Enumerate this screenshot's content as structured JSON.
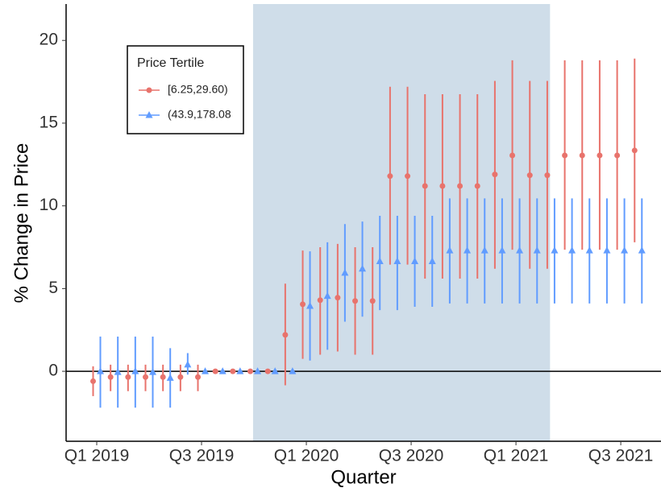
{
  "chart_data": {
    "type": "errorbar",
    "x_label": "Quarter",
    "y_label": "% Change in Price",
    "categories": [
      "Q1 2019",
      null,
      null,
      null,
      null,
      null,
      "Q3 2019",
      null,
      null,
      null,
      null,
      null,
      "Q1 2020",
      null,
      null,
      null,
      null,
      null,
      "Q3 2020",
      null,
      null,
      null,
      null,
      null,
      "Q1 2021",
      null,
      null,
      null,
      null,
      null,
      "Q3 2021",
      null
    ],
    "ylim": [
      -4.23,
      22.2
    ],
    "yticks": [
      0,
      5,
      10,
      15,
      20
    ],
    "grid": false,
    "zero_line": true,
    "shade": {
      "from": 8.95,
      "to": 25.95,
      "color": "#cfdde9"
    },
    "legend": {
      "title": "Price Tertile",
      "position": "top-left"
    },
    "series": [
      {
        "name": "[6.25,29.60)",
        "color": "#e8736c",
        "marker": "circle",
        "values": [
          -0.6,
          -0.35,
          -0.35,
          -0.35,
          -0.35,
          -0.35,
          -0.35,
          0,
          0,
          0,
          0,
          2.2,
          4.05,
          4.3,
          4.45,
          4.25,
          4.25,
          11.8,
          11.8,
          11.2,
          11.2,
          11.2,
          11.2,
          11.9,
          13.05,
          11.85,
          11.85,
          13.05,
          13.05,
          13.05,
          13.05,
          13.35
        ],
        "lower": [
          -1.5,
          -1.2,
          -1.2,
          -1.2,
          -1.2,
          -1.2,
          -1.2,
          0,
          0,
          0,
          0,
          -0.85,
          0.75,
          1.0,
          1.2,
          1.0,
          1.0,
          6.45,
          6.45,
          5.6,
          5.6,
          5.6,
          5.6,
          6.2,
          7.35,
          6.2,
          6.2,
          7.35,
          7.35,
          7.35,
          7.35,
          7.8
        ],
        "upper": [
          0.3,
          0.4,
          0.4,
          0.4,
          0.4,
          0.4,
          0.4,
          0,
          0,
          0,
          0,
          5.3,
          7.3,
          7.5,
          7.7,
          7.5,
          7.5,
          17.2,
          17.2,
          16.75,
          16.75,
          16.75,
          16.75,
          17.55,
          18.8,
          17.55,
          17.55,
          18.8,
          18.8,
          18.8,
          18.8,
          18.9
        ]
      },
      {
        "name": "(43.9,178.08",
        "color": "#619cff",
        "marker": "triangle",
        "values": [
          0,
          -0.05,
          0,
          -0.05,
          -0.4,
          0.4,
          0,
          0,
          0,
          0,
          0,
          0,
          3.95,
          4.55,
          5.95,
          6.2,
          6.65,
          6.65,
          6.65,
          6.65,
          7.3,
          7.3,
          7.3,
          7.3,
          7.3,
          7.3,
          7.3,
          7.3,
          7.3,
          7.3,
          7.3,
          7.3
        ],
        "lower": [
          -2.2,
          -2.2,
          -2.2,
          -2.2,
          -2.2,
          -0.2,
          0,
          0,
          0,
          0,
          0,
          0,
          0.65,
          1.3,
          3.0,
          3.3,
          3.7,
          3.7,
          3.9,
          3.9,
          4.1,
          4.1,
          4.1,
          4.1,
          4.1,
          4.1,
          4.1,
          4.1,
          4.1,
          4.1,
          4.1,
          4.1
        ],
        "upper": [
          2.1,
          2.1,
          2.1,
          2.1,
          1.4,
          1.1,
          0,
          0,
          0,
          0,
          0,
          0,
          7.25,
          7.8,
          8.9,
          9.05,
          9.4,
          9.4,
          9.4,
          9.4,
          10.45,
          10.45,
          10.45,
          10.45,
          10.45,
          10.45,
          10.45,
          10.45,
          10.45,
          10.45,
          10.45,
          10.45
        ]
      }
    ]
  }
}
